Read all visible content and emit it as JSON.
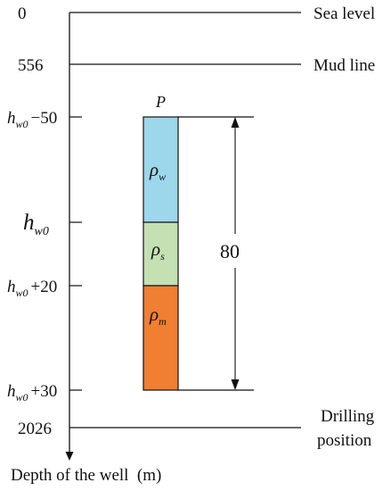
{
  "axis": {
    "label": "Depth of the well  (m)"
  },
  "levels": [
    {
      "value": "0",
      "name": "Sea level"
    },
    {
      "value": "556",
      "name": "Mud line"
    },
    {
      "value": "2026",
      "name_line1": "Drilling",
      "name_line2": "position"
    }
  ],
  "depth_labels": [
    {
      "base": "h",
      "sub": "w0",
      "suffix": "−50"
    },
    {
      "base": "h",
      "sub": "w0",
      "suffix": ""
    },
    {
      "base": "h",
      "sub": "w0",
      "suffix": "+20"
    },
    {
      "base": "h",
      "sub": "w0",
      "suffix": "+30"
    }
  ],
  "column": {
    "top_label": "P",
    "segments": [
      {
        "symbol": "ρ",
        "sub": "w",
        "color": "#9dd7ec"
      },
      {
        "symbol": "ρ",
        "sub": "s",
        "color": "#c5e0b3"
      },
      {
        "symbol": "ρ",
        "sub": "m",
        "color": "#f07f32"
      }
    ],
    "dimension": "80"
  }
}
